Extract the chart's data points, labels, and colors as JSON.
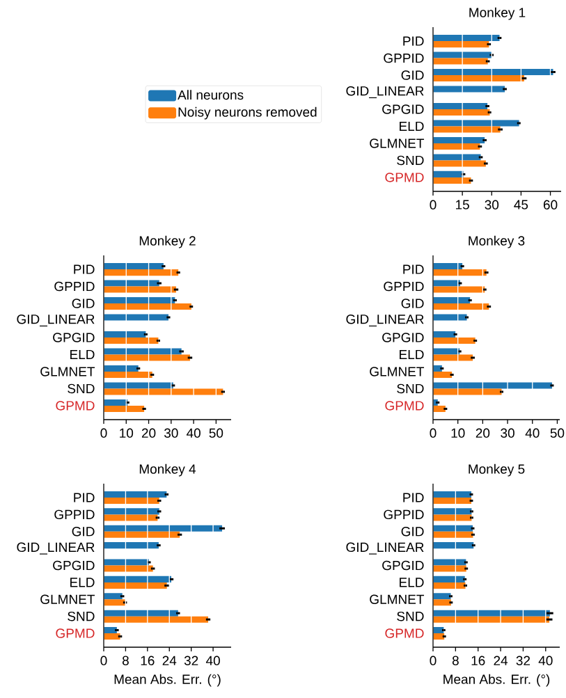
{
  "chart_data": [
    {
      "type": "bar",
      "orientation": "horizontal",
      "title": "Monkey 1",
      "categories": [
        "PID",
        "GPPID",
        "GID",
        "GID_LINEAR",
        "GPGID",
        "ELD",
        "GLMNET",
        "SND",
        "GPMD"
      ],
      "xlim": [
        0,
        65.5
      ],
      "xticks": [
        0,
        15,
        30,
        45,
        60
      ],
      "grid": "x",
      "legend": "left",
      "series": [
        {
          "name": "All neurons",
          "color": "#1f77b4",
          "values": [
            34,
            30,
            61.4,
            36.7,
            27.8,
            44,
            26.4,
            24.4,
            15.5
          ],
          "errors": [
            1,
            1,
            1.2,
            1,
            1,
            1,
            1,
            1,
            1
          ]
        },
        {
          "name": "Noisy neurons removed",
          "color": "#ff7f0e",
          "values": [
            28.6,
            28,
            46.6,
            null,
            29,
            34.4,
            24,
            27,
            19.4
          ],
          "errors": [
            1,
            1,
            1.2,
            null,
            1,
            1.2,
            1,
            1,
            1
          ]
        }
      ]
    },
    {
      "type": "bar",
      "orientation": "horizontal",
      "title": "Monkey 2",
      "categories": [
        "PID",
        "GPPID",
        "GID",
        "GID_LINEAR",
        "GPGID",
        "ELD",
        "GLMNET",
        "SND",
        "GPMD"
      ],
      "xlim": [
        0,
        56.7
      ],
      "xticks": [
        0,
        10,
        20,
        30,
        40,
        50
      ],
      "grid": "x",
      "series": [
        {
          "color": "#1f77b4",
          "values": [
            26.6,
            24.7,
            31.7,
            28.8,
            18.7,
            34.6,
            15.4,
            30.9,
            10.6
          ],
          "errors": [
            0.8,
            1,
            0.8,
            0.8,
            0.8,
            1,
            0.8,
            0.8,
            0.8
          ]
        },
        {
          "color": "#ff7f0e",
          "values": [
            33.2,
            32.2,
            39,
            null,
            24.3,
            38.4,
            21.6,
            53.1,
            18
          ],
          "errors": [
            0.8,
            1,
            0.8,
            null,
            0.8,
            1,
            0.8,
            0.8,
            0.8
          ]
        }
      ]
    },
    {
      "type": "bar",
      "orientation": "horizontal",
      "title": "Monkey 3",
      "categories": [
        "PID",
        "GPPID",
        "GID",
        "GID_LINEAR",
        "GPGID",
        "ELD",
        "GLMNET",
        "SND",
        "GPMD"
      ],
      "xlim": [
        0,
        51
      ],
      "xticks": [
        0,
        10,
        20,
        30,
        40,
        50
      ],
      "grid": "x",
      "series": [
        {
          "color": "#1f77b4",
          "values": [
            11.8,
            10.9,
            14.9,
            13.6,
            9,
            10.7,
            3.6,
            47.9,
            1.9
          ],
          "errors": [
            0.7,
            0.7,
            0.7,
            0.7,
            0.7,
            0.7,
            0.7,
            0.7,
            0.7
          ]
        },
        {
          "color": "#ff7f0e",
          "values": [
            21.5,
            20.8,
            22.5,
            null,
            17,
            16,
            7.6,
            27.6,
            5
          ],
          "errors": [
            0.8,
            0.7,
            0.8,
            null,
            0.7,
            0.8,
            0.7,
            0.7,
            0.7
          ]
        }
      ]
    },
    {
      "type": "bar",
      "orientation": "horizontal",
      "title": "Monkey 4",
      "xlabel": "Mean Abs. Err. (°)",
      "categories": [
        "PID",
        "GPPID",
        "GID",
        "GID_LINEAR",
        "GPGID",
        "ELD",
        "GLMNET",
        "SND",
        "GPMD"
      ],
      "xlim": [
        0,
        46.6
      ],
      "xticks": [
        0,
        8,
        16,
        24,
        32,
        40
      ],
      "grid": "x",
      "series": [
        {
          "color": "#1f77b4",
          "values": [
            23,
            20.3,
            43.3,
            20.1,
            16.5,
            24.7,
            6.8,
            27.2,
            4.8
          ],
          "errors": [
            0.7,
            0.7,
            1,
            0.7,
            0.7,
            0.8,
            0.7,
            0.7,
            0.7
          ]
        },
        {
          "color": "#ff7f0e",
          "values": [
            20.3,
            19.7,
            27.8,
            null,
            18,
            23.1,
            7.8,
            38.2,
            6
          ],
          "errors": [
            0.7,
            0.7,
            0.8,
            null,
            0.7,
            0.9,
            0.7,
            0.8,
            0.7
          ]
        }
      ]
    },
    {
      "type": "bar",
      "orientation": "horizontal",
      "title": "Monkey 5",
      "xlabel": "Mean Abs. Err. (°)",
      "categories": [
        "PID",
        "GPPID",
        "GID",
        "GID_LINEAR",
        "GPGID",
        "ELD",
        "GLMNET",
        "SND",
        "GPMD"
      ],
      "xlim": [
        0,
        45
      ],
      "xticks": [
        0,
        8,
        16,
        24,
        32,
        40
      ],
      "grid": "x",
      "series": [
        {
          "color": "#1f77b4",
          "values": [
            13.6,
            13.7,
            14.1,
            14.4,
            11.7,
            11.3,
            6.3,
            41.5,
            3.8
          ],
          "errors": [
            0.6,
            0.6,
            0.6,
            0.6,
            0.6,
            0.6,
            0.6,
            1.2,
            0.6
          ]
        },
        {
          "color": "#ff7f0e",
          "values": [
            13.6,
            13.7,
            14.2,
            null,
            11.8,
            11.5,
            6.4,
            41.3,
            4
          ],
          "errors": [
            0.6,
            0.6,
            0.6,
            null,
            0.6,
            0.6,
            0.6,
            1.1,
            0.6
          ]
        }
      ]
    }
  ]
}
